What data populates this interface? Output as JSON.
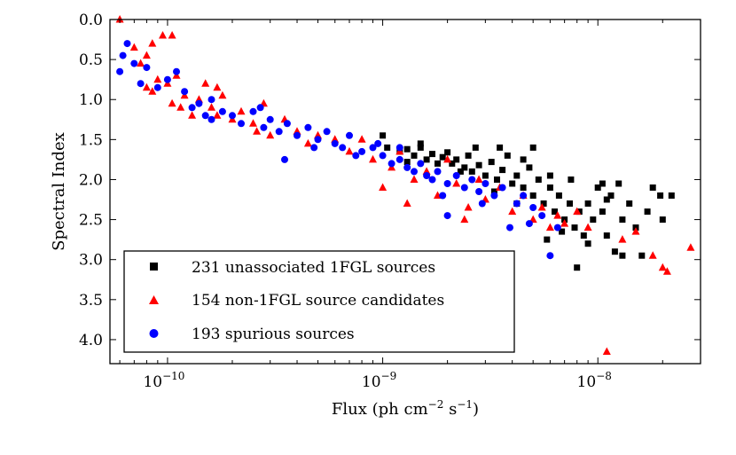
{
  "chart_data": {
    "type": "scatter",
    "title": "",
    "xlabel": "Flux (ph cm",
    "xlabel_exp1": "−2",
    "xlabel_mid": " s",
    "xlabel_exp2": "−1",
    "xlabel_end": ")",
    "ylabel": "Spectral Index",
    "xscale": "log",
    "xlim": [
      5.4e-11,
      3e-08
    ],
    "ylim": [
      4.3,
      0.0
    ],
    "y_inverted": true,
    "x_ticks": [
      {
        "value": 1e-10,
        "base": "10",
        "exp": "−10"
      },
      {
        "value": 1e-09,
        "base": "10",
        "exp": "−9"
      },
      {
        "value": 1e-08,
        "base": "10",
        "exp": "−8"
      }
    ],
    "y_ticks": [
      "0.0",
      "0.5",
      "1.0",
      "1.5",
      "2.0",
      "2.5",
      "3.0",
      "3.5",
      "4.0"
    ],
    "legend_position": "lower-left",
    "series": [
      {
        "name": "231 unassociated 1FGL sources",
        "marker": "square",
        "color": "#000000",
        "points": [
          [
            1.05e-09,
            1.6
          ],
          [
            1.2e-09,
            1.65
          ],
          [
            1.3e-09,
            1.62
          ],
          [
            1.4e-09,
            1.7
          ],
          [
            1.5e-09,
            1.6
          ],
          [
            1.6e-09,
            1.75
          ],
          [
            1.7e-09,
            1.68
          ],
          [
            1.8e-09,
            1.8
          ],
          [
            1.9e-09,
            1.72
          ],
          [
            2e-09,
            1.66
          ],
          [
            2.1e-09,
            1.8
          ],
          [
            2.2e-09,
            1.75
          ],
          [
            2.4e-09,
            1.85
          ],
          [
            2.5e-09,
            1.7
          ],
          [
            2.6e-09,
            1.9
          ],
          [
            2.8e-09,
            1.82
          ],
          [
            3e-09,
            1.95
          ],
          [
            3.2e-09,
            1.78
          ],
          [
            3.4e-09,
            2.0
          ],
          [
            3.6e-09,
            1.88
          ],
          [
            3.8e-09,
            1.7
          ],
          [
            4e-09,
            2.05
          ],
          [
            4.2e-09,
            1.95
          ],
          [
            4.5e-09,
            2.1
          ],
          [
            4.8e-09,
            1.85
          ],
          [
            5e-09,
            2.2
          ],
          [
            5.3e-09,
            2.0
          ],
          [
            5.6e-09,
            2.3
          ],
          [
            6e-09,
            2.1
          ],
          [
            6.3e-09,
            2.4
          ],
          [
            6.6e-09,
            2.2
          ],
          [
            7e-09,
            2.5
          ],
          [
            7.4e-09,
            2.3
          ],
          [
            7.8e-09,
            2.6
          ],
          [
            8.2e-09,
            2.4
          ],
          [
            8.6e-09,
            2.7
          ],
          [
            9e-09,
            2.3
          ],
          [
            9.5e-09,
            2.5
          ],
          [
            1e-08,
            2.1
          ],
          [
            1.05e-08,
            2.4
          ],
          [
            1.1e-08,
            2.7
          ],
          [
            1.15e-08,
            2.2
          ],
          [
            1.2e-08,
            2.9
          ],
          [
            1.3e-08,
            2.5
          ],
          [
            1.4e-08,
            2.3
          ],
          [
            1.5e-08,
            2.6
          ],
          [
            1.7e-08,
            2.4
          ],
          [
            1.8e-08,
            2.1
          ],
          [
            2e-08,
            2.5
          ],
          [
            2.2e-08,
            2.2
          ],
          [
            8e-09,
            3.1
          ],
          [
            1.05e-08,
            2.05
          ],
          [
            1.1e-08,
            2.25
          ],
          [
            1.3e-08,
            2.95
          ],
          [
            6e-09,
            1.95
          ],
          [
            5e-09,
            1.6
          ],
          [
            4.5e-09,
            1.75
          ],
          [
            3.5e-09,
            1.6
          ],
          [
            1.5e-09,
            1.55
          ],
          [
            1e-09,
            1.45
          ],
          [
            1.3e-09,
            1.78
          ],
          [
            2.3e-09,
            1.9
          ],
          [
            2.7e-09,
            1.6
          ],
          [
            7.5e-09,
            2.0
          ],
          [
            9e-09,
            2.8
          ],
          [
            1.6e-08,
            2.95
          ],
          [
            1.25e-08,
            2.05
          ],
          [
            1.95e-08,
            2.2
          ],
          [
            6.8e-09,
            2.65
          ],
          [
            5.8e-09,
            2.75
          ],
          [
            4.2e-09,
            2.3
          ],
          [
            3.3e-09,
            2.15
          ]
        ]
      },
      {
        "name": "154 non-1FGL source candidates",
        "marker": "triangle",
        "color": "#ff0000",
        "points": [
          [
            6e-11,
            0.0
          ],
          [
            7.5e-11,
            0.55
          ],
          [
            8e-11,
            0.45
          ],
          [
            8.5e-11,
            0.3
          ],
          [
            9.5e-11,
            0.2
          ],
          [
            1.05e-10,
            0.2
          ],
          [
            7e-11,
            0.35
          ],
          [
            8e-11,
            0.85
          ],
          [
            8.5e-11,
            0.9
          ],
          [
            9e-11,
            0.75
          ],
          [
            1e-10,
            0.8
          ],
          [
            1.1e-10,
            0.7
          ],
          [
            1.05e-10,
            1.05
          ],
          [
            1.15e-10,
            1.1
          ],
          [
            1.2e-10,
            0.95
          ],
          [
            1.3e-10,
            1.2
          ],
          [
            1.4e-10,
            1.0
          ],
          [
            1.5e-10,
            0.8
          ],
          [
            1.6e-10,
            1.1
          ],
          [
            1.7e-10,
            0.85
          ],
          [
            1.8e-10,
            0.95
          ],
          [
            2e-10,
            1.25
          ],
          [
            2.2e-10,
            1.15
          ],
          [
            2.5e-10,
            1.3
          ],
          [
            2.8e-10,
            1.05
          ],
          [
            3e-10,
            1.45
          ],
          [
            3.5e-10,
            1.25
          ],
          [
            4e-10,
            1.4
          ],
          [
            4.5e-10,
            1.55
          ],
          [
            5e-10,
            1.45
          ],
          [
            6e-10,
            1.5
          ],
          [
            7e-10,
            1.65
          ],
          [
            8e-10,
            1.5
          ],
          [
            9e-10,
            1.75
          ],
          [
            1e-09,
            2.1
          ],
          [
            1.1e-09,
            1.85
          ],
          [
            1.2e-09,
            1.65
          ],
          [
            1.4e-09,
            2.0
          ],
          [
            1.6e-09,
            1.9
          ],
          [
            1.8e-09,
            2.2
          ],
          [
            2e-09,
            1.75
          ],
          [
            2.2e-09,
            2.05
          ],
          [
            2.5e-09,
            2.35
          ],
          [
            2.8e-09,
            2.0
          ],
          [
            3e-09,
            2.25
          ],
          [
            3.5e-09,
            2.1
          ],
          [
            4e-09,
            2.4
          ],
          [
            4.5e-09,
            2.2
          ],
          [
            5e-09,
            2.5
          ],
          [
            5.5e-09,
            2.35
          ],
          [
            6e-09,
            2.6
          ],
          [
            6.5e-09,
            2.45
          ],
          [
            7e-09,
            2.55
          ],
          [
            8e-09,
            2.4
          ],
          [
            9e-09,
            2.6
          ],
          [
            1.1e-08,
            4.15
          ],
          [
            1.3e-08,
            2.75
          ],
          [
            1.5e-08,
            2.65
          ],
          [
            1.8e-08,
            2.95
          ],
          [
            2e-08,
            3.1
          ],
          [
            2.1e-08,
            3.15
          ],
          [
            2.7e-08,
            2.85
          ],
          [
            1.7e-10,
            1.2
          ],
          [
            2.6e-10,
            1.4
          ],
          [
            1.3e-09,
            2.3
          ],
          [
            2.4e-09,
            2.5
          ]
        ]
      },
      {
        "name": "193 spurious sources",
        "marker": "circle",
        "color": "#0000ff",
        "points": [
          [
            6e-11,
            0.65
          ],
          [
            6.2e-11,
            0.45
          ],
          [
            6.5e-11,
            0.3
          ],
          [
            7e-11,
            0.55
          ],
          [
            7.5e-11,
            0.8
          ],
          [
            8e-11,
            0.6
          ],
          [
            9e-11,
            0.85
          ],
          [
            1e-10,
            0.75
          ],
          [
            1.1e-10,
            0.65
          ],
          [
            1.2e-10,
            0.9
          ],
          [
            1.3e-10,
            1.1
          ],
          [
            1.4e-10,
            1.05
          ],
          [
            1.5e-10,
            1.2
          ],
          [
            1.6e-10,
            1.0
          ],
          [
            1.8e-10,
            1.15
          ],
          [
            2e-10,
            1.2
          ],
          [
            2.2e-10,
            1.3
          ],
          [
            2.5e-10,
            1.15
          ],
          [
            2.8e-10,
            1.35
          ],
          [
            3e-10,
            1.25
          ],
          [
            3.3e-10,
            1.4
          ],
          [
            3.6e-10,
            1.3
          ],
          [
            4e-10,
            1.45
          ],
          [
            4.5e-10,
            1.35
          ],
          [
            5e-10,
            1.5
          ],
          [
            5.5e-10,
            1.4
          ],
          [
            6e-10,
            1.55
          ],
          [
            6.5e-10,
            1.6
          ],
          [
            7e-10,
            1.45
          ],
          [
            8e-10,
            1.65
          ],
          [
            9e-10,
            1.6
          ],
          [
            1e-09,
            1.7
          ],
          [
            1.1e-09,
            1.8
          ],
          [
            1.2e-09,
            1.75
          ],
          [
            1.3e-09,
            1.85
          ],
          [
            1.4e-09,
            1.9
          ],
          [
            1.5e-09,
            1.8
          ],
          [
            1.6e-09,
            1.95
          ],
          [
            1.7e-09,
            2.0
          ],
          [
            1.8e-09,
            1.9
          ],
          [
            2e-09,
            2.05
          ],
          [
            2.2e-09,
            1.95
          ],
          [
            2.4e-09,
            2.1
          ],
          [
            2.6e-09,
            2.0
          ],
          [
            2.8e-09,
            2.15
          ],
          [
            3e-09,
            2.05
          ],
          [
            3.3e-09,
            2.2
          ],
          [
            3.6e-09,
            2.1
          ],
          [
            3.9e-09,
            2.6
          ],
          [
            4.2e-09,
            2.3
          ],
          [
            4.5e-09,
            2.2
          ],
          [
            5e-09,
            2.35
          ],
          [
            5.5e-09,
            2.45
          ],
          [
            6e-09,
            2.95
          ],
          [
            6.5e-09,
            2.6
          ],
          [
            3.5e-10,
            1.75
          ],
          [
            2e-09,
            2.45
          ],
          [
            1.2e-09,
            1.6
          ],
          [
            9.5e-10,
            1.55
          ],
          [
            7.5e-10,
            1.7
          ],
          [
            1.6e-10,
            1.25
          ],
          [
            2.7e-10,
            1.1
          ],
          [
            4.8e-10,
            1.6
          ],
          [
            1.9e-09,
            2.2
          ],
          [
            2.9e-09,
            2.3
          ],
          [
            4.8e-09,
            2.55
          ]
        ]
      }
    ]
  }
}
